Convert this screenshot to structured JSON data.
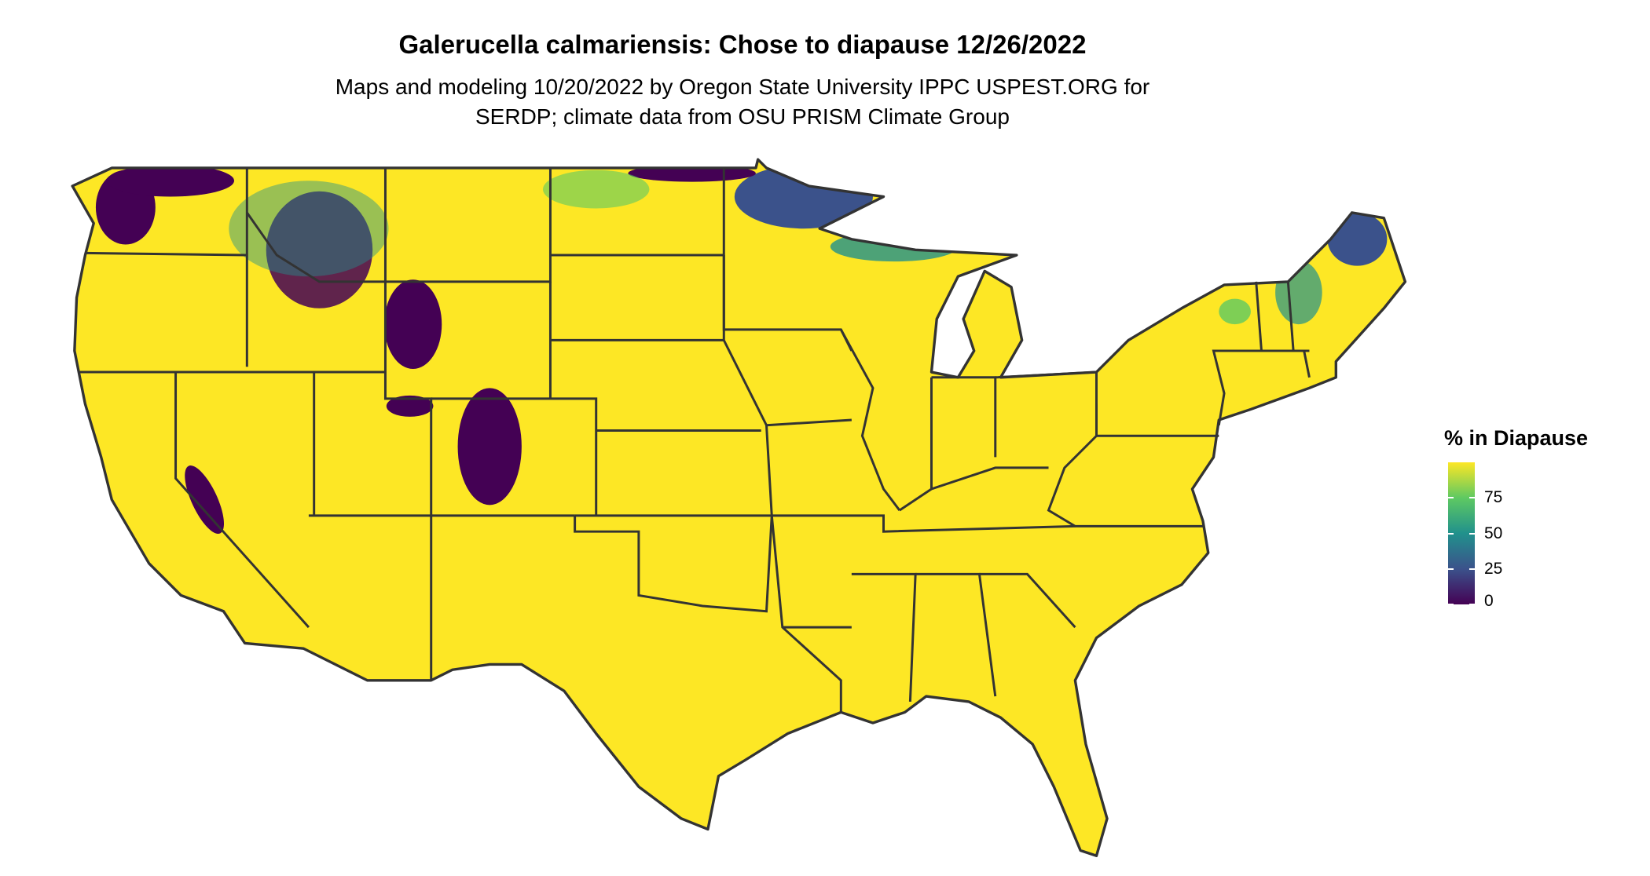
{
  "chart_data": {
    "type": "map",
    "title": "Galerucella calmariensis: Chose to diapause 12/26/2022",
    "subtitle_lines": [
      "Maps and modeling 10/20/2022 by Oregon State University IPPC USPEST.ORG for",
      "SERDP; climate data from OSU PRISM Climate Group"
    ],
    "legend": {
      "title": "% in Diapause",
      "position": "right",
      "range": [
        0,
        100
      ],
      "ticks": [
        0,
        25,
        50,
        75
      ],
      "tick_labels": [
        "0",
        "25",
        "50",
        "75"
      ],
      "colorscale": "viridis",
      "colors": [
        "#440154",
        "#3b528b",
        "#21918c",
        "#5ec962",
        "#fde725"
      ]
    },
    "dominant_color": "#fde725",
    "border_color": "#333333"
  }
}
